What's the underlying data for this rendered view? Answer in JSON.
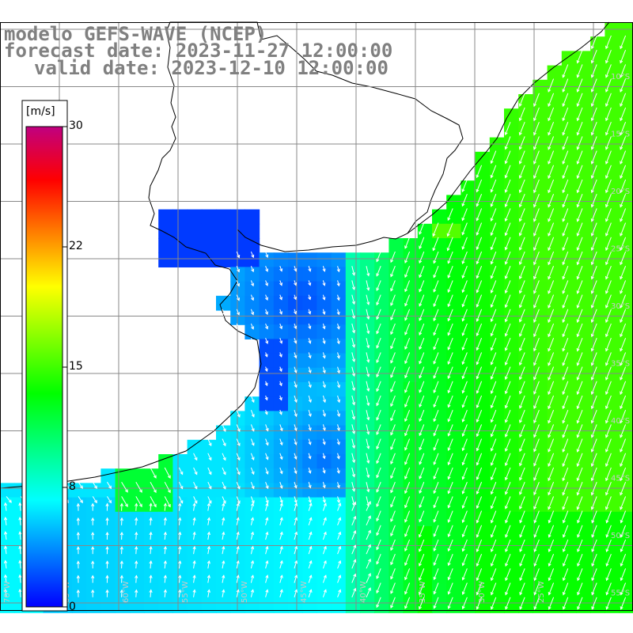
{
  "title": {
    "model": "modelo GEFS-WAVE (NCEP)",
    "forecast_date": "forecast date: 2023-11-27 12:00:00",
    "valid_date": "valid date: 2023-12-10 12:00:00"
  },
  "colorbar": {
    "units": "[m/s]",
    "ticks": [
      "30",
      "22",
      "15",
      "8",
      "0"
    ],
    "min": 0,
    "max": 30,
    "colors": [
      "#0000ff",
      "#0080ff",
      "#00ffff",
      "#00ff80",
      "#00ff00",
      "#80ff00",
      "#ffff00",
      "#ff8000",
      "#ff0000",
      "#c00080"
    ]
  },
  "grid": {
    "lon_labels": [
      "70°W",
      "65°W",
      "60°W",
      "55°W",
      "50°W",
      "45°W",
      "40°W",
      "35°W",
      "30°W",
      "25°W"
    ],
    "lat_labels": [
      "10°S",
      "15°S",
      "20°S",
      "25°S",
      "30°S",
      "35°S",
      "40°S",
      "45°S",
      "50°S",
      "55°S"
    ]
  },
  "field": {
    "variable": "wind speed and direction",
    "units": "m/s"
  }
}
